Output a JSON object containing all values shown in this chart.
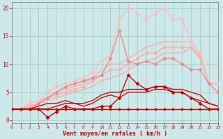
{
  "bg_color": "#cce8e8",
  "grid_color": "#aacccc",
  "x_min": 0,
  "x_max": 23,
  "y_min": -0.5,
  "y_max": 21,
  "xlabel": "Vent moyen/en rafales ( km/h )",
  "xlabel_color": "#cc0000",
  "tick_color": "#cc0000",
  "lines": [
    {
      "x": [
        0,
        1,
        2,
        3,
        4,
        5,
        6,
        7,
        8,
        9,
        10,
        11,
        12,
        13,
        14,
        15,
        16,
        17,
        18,
        19,
        20,
        21,
        22,
        23
      ],
      "y": [
        2,
        2,
        2,
        2,
        2,
        2,
        2,
        2,
        2,
        2,
        2,
        2,
        2,
        2,
        2,
        2,
        2,
        2,
        2,
        2,
        2,
        2,
        2,
        2
      ],
      "color": "#cc0000",
      "lw": 1.0,
      "marker": "s",
      "ms": 2.0,
      "zorder": 6
    },
    {
      "x": [
        0,
        1,
        2,
        3,
        4,
        5,
        6,
        7,
        8,
        9,
        10,
        11,
        12,
        13,
        14,
        15,
        16,
        17,
        18,
        19,
        20,
        21,
        22,
        23
      ],
      "y": [
        2,
        2,
        2,
        2,
        0.5,
        1.5,
        2.5,
        2,
        2,
        2,
        2.5,
        2.5,
        4,
        8,
        6.5,
        5.5,
        6,
        6,
        5,
        5,
        4,
        3,
        2,
        2
      ],
      "color": "#cc0000",
      "lw": 1.0,
      "marker": "D",
      "ms": 2.0,
      "zorder": 5
    },
    {
      "x": [
        0,
        1,
        2,
        3,
        4,
        5,
        6,
        7,
        8,
        9,
        10,
        11,
        12,
        13,
        14,
        15,
        16,
        17,
        18,
        19,
        20,
        21,
        22,
        23
      ],
      "y": [
        2,
        2,
        2,
        2,
        2,
        2.5,
        3,
        3,
        2.5,
        3,
        4,
        4.5,
        4,
        5,
        5,
        5,
        5.5,
        5.5,
        5,
        5,
        4,
        3.5,
        3,
        2.5
      ],
      "color": "#bb1111",
      "lw": 1.0,
      "marker": null,
      "ms": 0,
      "zorder": 4
    },
    {
      "x": [
        0,
        1,
        2,
        3,
        4,
        5,
        6,
        7,
        8,
        9,
        10,
        11,
        12,
        13,
        14,
        15,
        16,
        17,
        18,
        19,
        20,
        21,
        22,
        23
      ],
      "y": [
        2,
        2,
        2,
        2.5,
        3,
        3,
        3.5,
        3,
        3,
        3.5,
        4.5,
        5,
        5,
        5.5,
        5.5,
        5.5,
        6,
        6,
        5.5,
        5.5,
        5,
        4.5,
        3,
        2.5
      ],
      "color": "#bb1111",
      "lw": 1.0,
      "marker": null,
      "ms": 0,
      "zorder": 4
    },
    {
      "x": [
        0,
        1,
        2,
        3,
        4,
        5,
        6,
        7,
        8,
        9,
        10,
        11,
        12,
        13,
        14,
        15,
        16,
        17,
        18,
        19,
        20,
        21,
        22,
        23
      ],
      "y": [
        2,
        2,
        2.5,
        3,
        3.5,
        4,
        4.5,
        5,
        5.5,
        6,
        7,
        7.5,
        8,
        9,
        10,
        10.5,
        11,
        12,
        12,
        12,
        13,
        11,
        6.5,
        6.5
      ],
      "color": "#ffaaaa",
      "lw": 1.0,
      "marker": null,
      "ms": 0,
      "zorder": 2
    },
    {
      "x": [
        0,
        1,
        2,
        3,
        4,
        5,
        6,
        7,
        8,
        9,
        10,
        11,
        12,
        13,
        14,
        15,
        16,
        17,
        18,
        19,
        20,
        21,
        22,
        23
      ],
      "y": [
        2,
        2,
        3,
        3.5,
        4,
        5,
        5.5,
        6,
        6.5,
        7.5,
        9,
        10,
        10,
        11,
        12,
        13,
        13.5,
        14,
        14,
        14,
        14,
        12,
        6.5,
        6.5
      ],
      "color": "#ffaaaa",
      "lw": 1.0,
      "marker": null,
      "ms": 0,
      "zorder": 2
    },
    {
      "x": [
        0,
        1,
        2,
        3,
        4,
        5,
        6,
        7,
        8,
        9,
        10,
        11,
        12,
        13,
        14,
        15,
        16,
        17,
        18,
        19,
        20,
        21,
        22,
        23
      ],
      "y": [
        2,
        2,
        2.5,
        3,
        4,
        4.5,
        5,
        5.5,
        6,
        7,
        8,
        9,
        9,
        10,
        11,
        12,
        12,
        13,
        13,
        13,
        13,
        11.5,
        6.5,
        6.5
      ],
      "color": "#ffaaaa",
      "lw": 1.0,
      "marker": "D",
      "ms": 2.0,
      "zorder": 3
    },
    {
      "x": [
        0,
        1,
        2,
        3,
        4,
        5,
        6,
        7,
        8,
        9,
        10,
        11,
        12,
        13,
        14,
        15,
        16,
        17,
        18,
        19,
        20,
        21,
        22,
        23
      ],
      "y": [
        2,
        2,
        3,
        3.5,
        5,
        6,
        6.5,
        7,
        7.5,
        8.5,
        10.5,
        11.5,
        18,
        20,
        19,
        18,
        19,
        20,
        18,
        18,
        14,
        12,
        6.5,
        6.5
      ],
      "color": "#ffbbbb",
      "lw": 1.0,
      "marker": "D",
      "ms": 2.0,
      "zorder": 3
    },
    {
      "x": [
        0,
        1,
        2,
        3,
        4,
        5,
        6,
        7,
        8,
        9,
        10,
        11,
        12,
        13,
        14,
        15,
        16,
        17,
        18,
        19,
        20,
        21,
        22,
        23
      ],
      "y": [
        2,
        2,
        2,
        3,
        4,
        5,
        6,
        6.5,
        7,
        7.5,
        8,
        11,
        16,
        10.5,
        10,
        10.5,
        10,
        11,
        11,
        10,
        9,
        9,
        6.5,
        5
      ],
      "color": "#ee8888",
      "lw": 1.0,
      "marker": "D",
      "ms": 2.0,
      "zorder": 3
    }
  ]
}
